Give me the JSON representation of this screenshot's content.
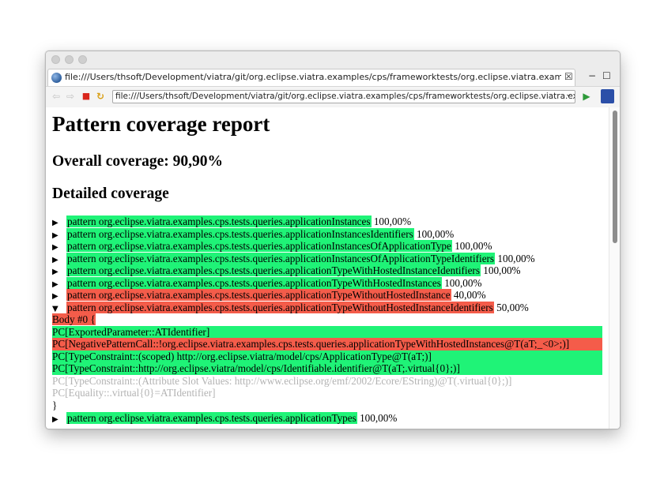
{
  "window": {
    "tab_title": "file:///Users/thsoft/Development/viatra/git/org.eclipse.viatra.examples/cps/frameworktests/org.eclipse.viatra.examples.cps.tests/BasicCpsT",
    "tab_close": "☒",
    "minimize": "−",
    "maximize": "☐"
  },
  "toolbar": {
    "back": "⇦",
    "forward": "⇨",
    "stop": "■",
    "refresh": "↻",
    "url": "file:///Users/thsoft/Development/viatra/git/org.eclipse.viatra.examples/cps/frameworktests/org.eclipse.viatra.examples.cps.te",
    "url_dropdown": "⌄",
    "go": "▶"
  },
  "colors": {
    "covered": "#1ff377",
    "uncovered": "#f45c4a",
    "filtered": "#b3b3b3"
  },
  "report": {
    "title": "Pattern coverage report",
    "overall": "Overall coverage: 90,90%",
    "detailed": "Detailed coverage",
    "patterns": [
      {
        "arrow": "▶",
        "name": "pattern org.eclipse.viatra.examples.cps.tests.queries.applicationInstances",
        "coverage": "100,00%",
        "status": "covered"
      },
      {
        "arrow": "▶",
        "name": "pattern org.eclipse.viatra.examples.cps.tests.queries.applicationInstancesIdentifiers",
        "coverage": "100,00%",
        "status": "covered"
      },
      {
        "arrow": "▶",
        "name": "pattern org.eclipse.viatra.examples.cps.tests.queries.applicationInstancesOfApplicationType",
        "coverage": "100,00%",
        "status": "covered"
      },
      {
        "arrow": "▶",
        "name": "pattern org.eclipse.viatra.examples.cps.tests.queries.applicationInstancesOfApplicationTypeIdentifiers",
        "coverage": "100,00%",
        "status": "covered"
      },
      {
        "arrow": "▶",
        "name": "pattern org.eclipse.viatra.examples.cps.tests.queries.applicationTypeWithHostedInstanceIdentifiers",
        "coverage": "100,00%",
        "status": "covered"
      },
      {
        "arrow": "▶",
        "name": "pattern org.eclipse.viatra.examples.cps.tests.queries.applicationTypeWithHostedInstances",
        "coverage": "100,00%",
        "status": "covered"
      },
      {
        "arrow": "▶",
        "name": "pattern org.eclipse.viatra.examples.cps.tests.queries.applicationTypeWithoutHostedInstance",
        "coverage": "40,00%",
        "status": "uncovered"
      },
      {
        "arrow": "▼",
        "name": "pattern org.eclipse.viatra.examples.cps.tests.queries.applicationTypeWithoutHostedInstanceIdentifiers",
        "coverage": "50,00%",
        "status": "uncovered"
      }
    ],
    "body_lines": [
      {
        "text": "Body #0 {",
        "status": "uncovered",
        "full": false
      },
      {
        "text": "PC[ExportedParameter::ATIdentifier]",
        "status": "covered",
        "full": true
      },
      {
        "text": "PC[NegativePatternCall::!org.eclipse.viatra.examples.cps.tests.queries.applicationTypeWithHostedInstances@T(aT;_<0>;)]",
        "status": "uncovered",
        "full": true
      },
      {
        "text": "PC[TypeConstraint::(scoped) http://org.eclipse.viatra/model/cps/ApplicationType@T(aT;)]",
        "status": "covered",
        "full": true
      },
      {
        "text": "PC[TypeConstraint::http://org.eclipse.viatra/model/cps/Identifiable.identifier@T(aT;.virtual{0};)]",
        "status": "covered",
        "full": true
      },
      {
        "text": "PC[TypeConstraint::(Attribute Slot Values: http://www.eclipse.org/emf/2002/Ecore/EString)@T(.virtual{0};)]",
        "status": "filtered",
        "full": false
      },
      {
        "text": "PC[Equality::.virtual{0}=ATIdentifier]",
        "status": "filtered",
        "full": false
      },
      {
        "text": "}",
        "status": "plain",
        "full": false
      }
    ],
    "last_pattern": {
      "arrow": "▶",
      "name": "pattern org.eclipse.viatra.examples.cps.tests.queries.applicationTypes",
      "coverage": "100,00%",
      "status": "covered"
    }
  }
}
